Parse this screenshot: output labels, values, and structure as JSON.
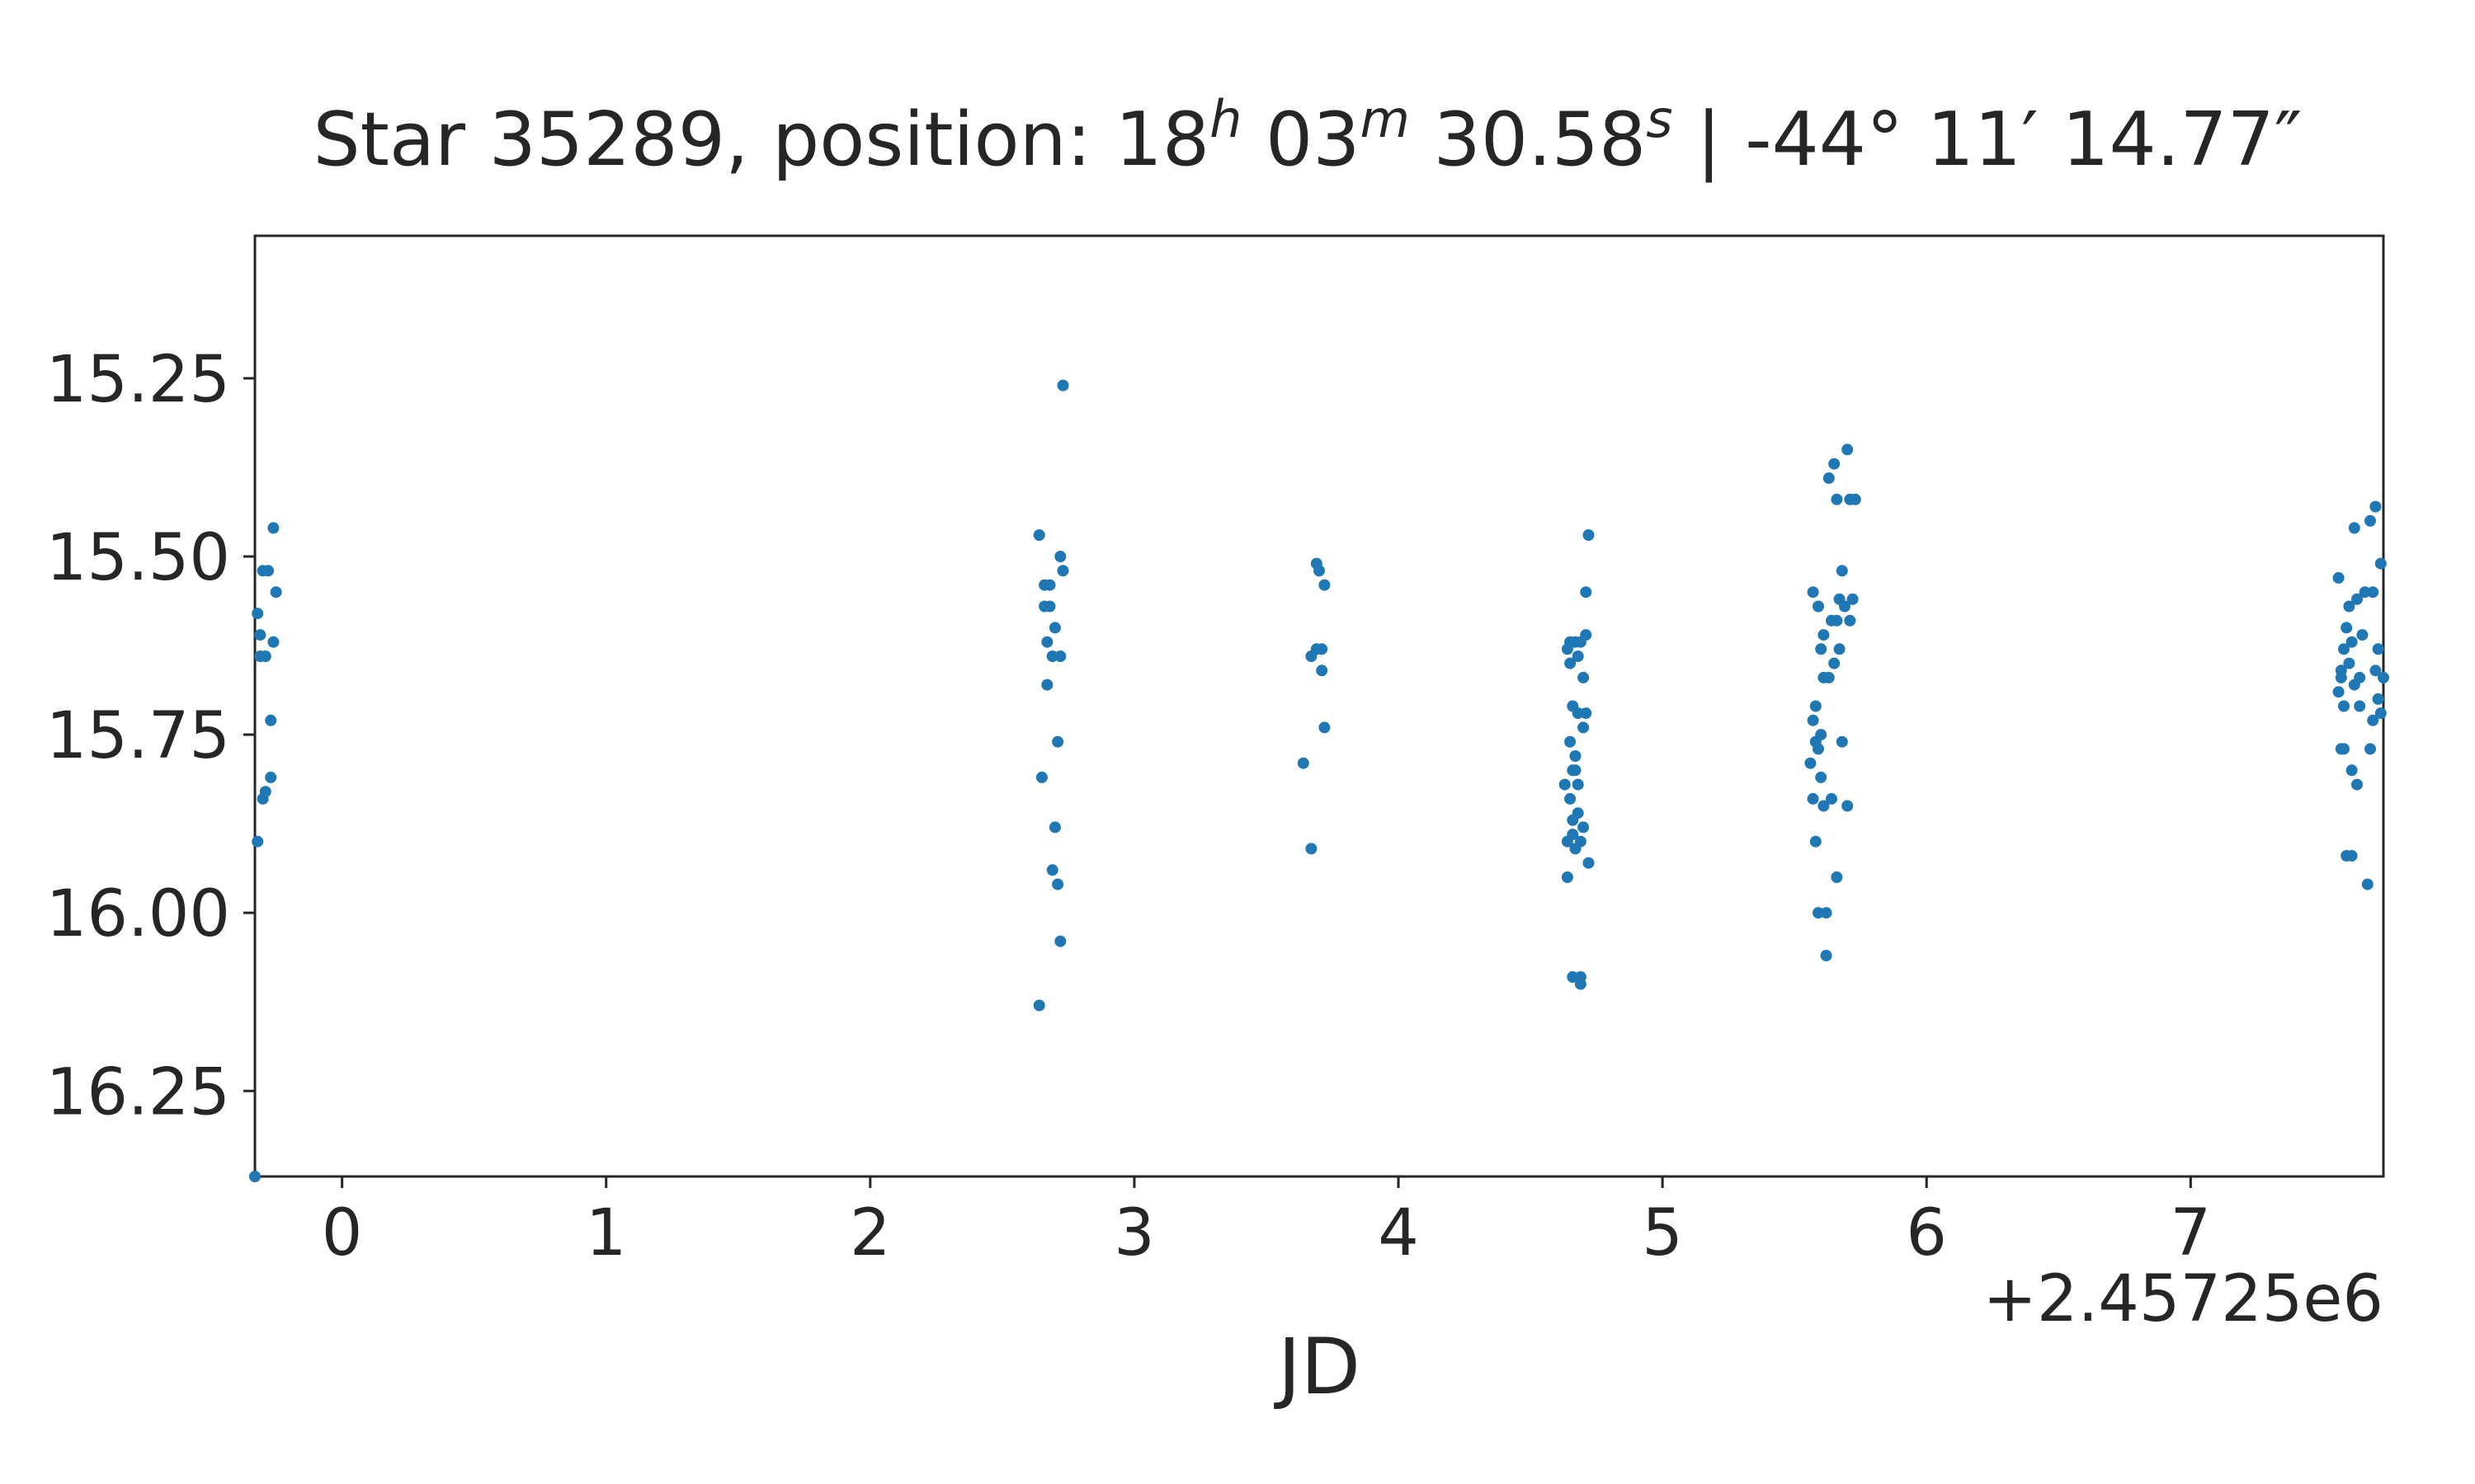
{
  "chart_data": {
    "type": "scatter",
    "title": {
      "prefix": "Star 35289, position: 18",
      "h_sup": "h",
      "part2": " 03",
      "m_sup": "m",
      "part3": " 30.58",
      "s_sup": "s",
      "part4": " | -44° 11′ 14.77″"
    },
    "xlabel": "JD",
    "ylabel": "",
    "x_offset_label": "+2.45725e6",
    "x_offset": 2457250,
    "xlim": [
      -0.33,
      7.73
    ],
    "ylim": [
      16.37,
      15.05
    ],
    "y_inverted": true,
    "x_ticks": [
      0,
      1,
      2,
      3,
      4,
      5,
      6,
      7
    ],
    "x_tick_labels": [
      "0",
      "1",
      "2",
      "3",
      "4",
      "5",
      "6",
      "7"
    ],
    "y_ticks": [
      15.25,
      15.5,
      15.75,
      16.0,
      16.25
    ],
    "y_tick_labels": [
      "15.25",
      "15.50",
      "15.75",
      "16.00",
      "16.25"
    ],
    "grid": false,
    "marker_color": "#1f77b4",
    "series": [
      {
        "x": [
          -0.33,
          -0.32,
          -0.32,
          -0.31,
          -0.31,
          -0.3,
          -0.3,
          -0.29,
          -0.29,
          -0.28,
          -0.27,
          -0.27,
          -0.26,
          -0.26,
          -0.25,
          2.64,
          2.64,
          2.65,
          2.66,
          2.66,
          2.67,
          2.67,
          2.68,
          2.68,
          2.69,
          2.69,
          2.7,
          2.7,
          2.71,
          2.71,
          2.72,
          2.72,
          2.72,
          2.73,
          2.73,
          3.64,
          3.67,
          3.67,
          3.69,
          3.69,
          3.7,
          3.71,
          3.71,
          3.72,
          3.72,
          4.63,
          4.64,
          4.64,
          4.64,
          4.65,
          4.65,
          4.65,
          4.65,
          4.66,
          4.66,
          4.66,
          4.66,
          4.66,
          4.67,
          4.67,
          4.67,
          4.67,
          4.68,
          4.68,
          4.68,
          4.68,
          4.69,
          4.69,
          4.69,
          4.69,
          4.7,
          4.7,
          4.7,
          4.71,
          4.71,
          4.71,
          4.72,
          4.72,
          5.56,
          5.57,
          5.57,
          5.57,
          5.58,
          5.58,
          5.58,
          5.59,
          5.59,
          5.59,
          5.6,
          5.6,
          5.6,
          5.61,
          5.61,
          5.61,
          5.62,
          5.62,
          5.63,
          5.63,
          5.64,
          5.64,
          5.65,
          5.65,
          5.66,
          5.66,
          5.66,
          5.67,
          5.67,
          5.68,
          5.68,
          5.69,
          5.7,
          5.7,
          5.71,
          5.71,
          5.72,
          5.73,
          7.56,
          7.56,
          7.57,
          7.57,
          7.57,
          7.58,
          7.58,
          7.58,
          7.59,
          7.59,
          7.6,
          7.6,
          7.61,
          7.61,
          7.61,
          7.62,
          7.62,
          7.63,
          7.63,
          7.64,
          7.64,
          7.65,
          7.66,
          7.67,
          7.68,
          7.68,
          7.69,
          7.69,
          7.7,
          7.7,
          7.71,
          7.71,
          7.72,
          7.72,
          7.73
        ],
        "y": [
          16.37,
          15.58,
          15.9,
          15.61,
          15.64,
          15.52,
          15.84,
          15.64,
          15.83,
          15.52,
          15.73,
          15.81,
          15.62,
          15.46,
          15.55,
          16.13,
          15.47,
          15.81,
          15.54,
          15.57,
          15.62,
          15.68,
          15.57,
          15.54,
          15.64,
          15.94,
          15.6,
          15.88,
          15.96,
          15.76,
          15.64,
          15.5,
          16.04,
          15.52,
          15.26,
          15.79,
          15.64,
          15.91,
          15.51,
          15.63,
          15.52,
          15.63,
          15.66,
          15.54,
          15.74,
          15.82,
          15.63,
          15.9,
          15.95,
          15.62,
          15.65,
          15.76,
          15.84,
          15.71,
          15.8,
          15.89,
          16.09,
          15.87,
          15.62,
          15.78,
          15.8,
          15.91,
          15.64,
          15.72,
          15.82,
          15.86,
          15.62,
          15.9,
          16.09,
          16.1,
          15.67,
          15.74,
          15.88,
          15.55,
          15.61,
          15.72,
          15.93,
          15.47,
          15.79,
          15.73,
          15.84,
          15.55,
          15.71,
          15.76,
          15.9,
          15.57,
          15.77,
          16.0,
          15.63,
          15.75,
          15.81,
          15.61,
          15.67,
          15.85,
          16.0,
          16.06,
          15.67,
          15.39,
          15.59,
          15.84,
          15.65,
          15.37,
          15.42,
          15.59,
          15.95,
          15.56,
          15.63,
          15.52,
          15.76,
          15.57,
          15.85,
          15.35,
          15.42,
          15.59,
          15.56,
          15.42,
          15.53,
          15.69,
          15.77,
          15.66,
          15.67,
          15.63,
          15.71,
          15.77,
          15.6,
          15.92,
          15.65,
          15.57,
          15.92,
          15.62,
          15.8,
          15.68,
          15.46,
          15.82,
          15.56,
          15.71,
          15.67,
          15.61,
          15.55,
          15.96,
          15.77,
          15.45,
          15.73,
          15.55,
          15.43,
          15.66,
          15.7,
          15.63,
          15.72,
          15.51,
          15.67
        ]
      }
    ]
  }
}
